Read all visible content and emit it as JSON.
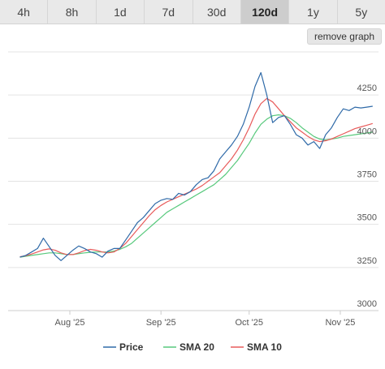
{
  "ranges": [
    {
      "label": "4h",
      "active": false
    },
    {
      "label": "8h",
      "active": false
    },
    {
      "label": "1d",
      "active": false
    },
    {
      "label": "7d",
      "active": false
    },
    {
      "label": "30d",
      "active": false
    },
    {
      "label": "120d",
      "active": true
    },
    {
      "label": "1y",
      "active": false
    },
    {
      "label": "5y",
      "active": false
    }
  ],
  "remove_graph_label": "remove graph",
  "chart_data": {
    "type": "line",
    "title": "",
    "xlabel": "",
    "ylabel": "",
    "x_ticks": [
      "Aug '25",
      "Sep '25",
      "Oct '25",
      "Nov '25"
    ],
    "y_ticks": [
      3000,
      3250,
      3500,
      3750,
      4000,
      4250
    ],
    "ylim": [
      3000,
      4500
    ],
    "grid": true,
    "legend_position": "bottom",
    "x": [
      "2025-07-15",
      "2025-07-17",
      "2025-07-19",
      "2025-07-21",
      "2025-07-23",
      "2025-07-25",
      "2025-07-27",
      "2025-07-29",
      "2025-07-31",
      "2025-08-02",
      "2025-08-04",
      "2025-08-06",
      "2025-08-08",
      "2025-08-10",
      "2025-08-12",
      "2025-08-14",
      "2025-08-16",
      "2025-08-18",
      "2025-08-20",
      "2025-08-22",
      "2025-08-24",
      "2025-08-26",
      "2025-08-28",
      "2025-08-30",
      "2025-09-01",
      "2025-09-03",
      "2025-09-05",
      "2025-09-07",
      "2025-09-09",
      "2025-09-11",
      "2025-09-13",
      "2025-09-15",
      "2025-09-17",
      "2025-09-19",
      "2025-09-21",
      "2025-09-23",
      "2025-09-25",
      "2025-09-27",
      "2025-09-29",
      "2025-10-01",
      "2025-10-03",
      "2025-10-05",
      "2025-10-07",
      "2025-10-09",
      "2025-10-11",
      "2025-10-13",
      "2025-10-15",
      "2025-10-17",
      "2025-10-19",
      "2025-10-21",
      "2025-10-23",
      "2025-10-25",
      "2025-10-27",
      "2025-10-29",
      "2025-10-31",
      "2025-11-02",
      "2025-11-04",
      "2025-11-06",
      "2025-11-08",
      "2025-11-10",
      "2025-11-12"
    ],
    "series": [
      {
        "name": "Price",
        "color": "#2f6aa8",
        "values": [
          3310,
          3320,
          3340,
          3360,
          3420,
          3370,
          3320,
          3290,
          3320,
          3350,
          3375,
          3360,
          3340,
          3330,
          3310,
          3345,
          3360,
          3360,
          3410,
          3460,
          3510,
          3540,
          3580,
          3620,
          3640,
          3650,
          3645,
          3680,
          3670,
          3690,
          3730,
          3760,
          3770,
          3810,
          3880,
          3920,
          3960,
          4010,
          4080,
          4180,
          4300,
          4380,
          4250,
          4090,
          4120,
          4130,
          4080,
          4020,
          4000,
          3960,
          3980,
          3940,
          4020,
          4060,
          4120,
          4170,
          4160,
          4180,
          4175,
          4180,
          4185
        ]
      },
      {
        "name": "SMA 20",
        "color": "#57c97c",
        "values": [
          3310,
          3315,
          3320,
          3325,
          3330,
          3335,
          3335,
          3330,
          3325,
          3325,
          3330,
          3335,
          3338,
          3340,
          3340,
          3340,
          3345,
          3355,
          3370,
          3390,
          3420,
          3450,
          3480,
          3510,
          3540,
          3570,
          3590,
          3610,
          3630,
          3650,
          3670,
          3690,
          3710,
          3730,
          3760,
          3790,
          3830,
          3870,
          3920,
          3970,
          4030,
          4080,
          4110,
          4130,
          4135,
          4130,
          4115,
          4090,
          4060,
          4035,
          4010,
          3995,
          3990,
          3995,
          4000,
          4010,
          4015,
          4020,
          4025,
          4030,
          4035
        ]
      },
      {
        "name": "SMA 10",
        "color": "#e85a5a",
        "values": [
          3312,
          3318,
          3328,
          3340,
          3352,
          3358,
          3350,
          3335,
          3325,
          3325,
          3335,
          3348,
          3355,
          3350,
          3340,
          3335,
          3340,
          3360,
          3390,
          3430,
          3470,
          3510,
          3550,
          3585,
          3610,
          3630,
          3645,
          3660,
          3675,
          3690,
          3705,
          3725,
          3750,
          3775,
          3800,
          3840,
          3880,
          3930,
          3990,
          4060,
          4140,
          4200,
          4230,
          4210,
          4170,
          4130,
          4095,
          4060,
          4035,
          4010,
          3990,
          3980,
          3985,
          3995,
          4010,
          4025,
          4040,
          4055,
          4065,
          4075,
          4085
        ]
      }
    ]
  }
}
